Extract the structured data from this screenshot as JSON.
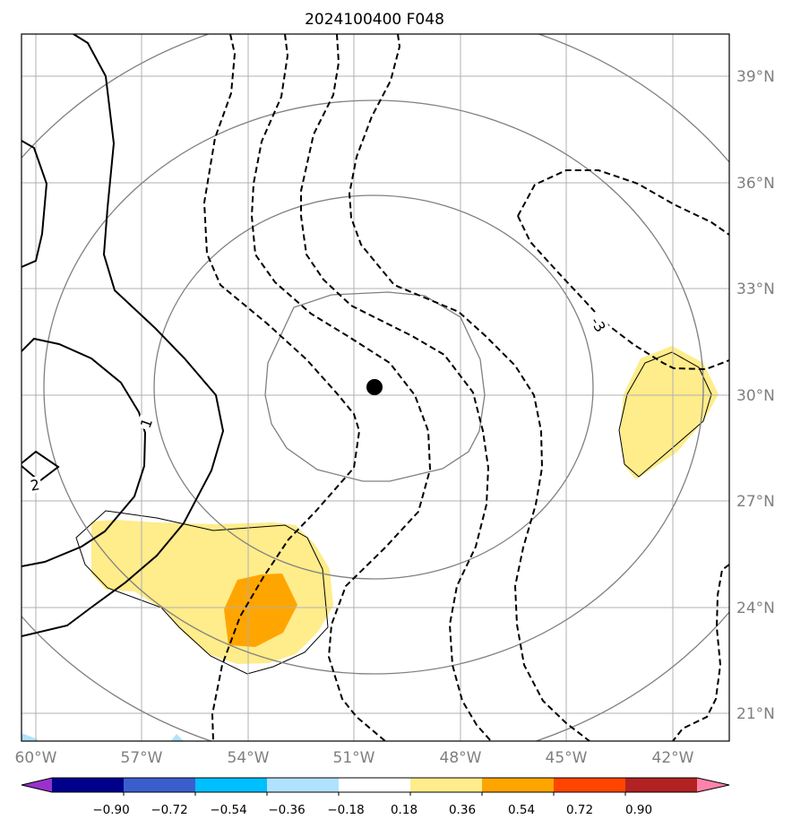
{
  "title": "2024100400 F048",
  "map": {
    "lon_range": [
      -61.2,
      -41.2
    ],
    "lat_range": [
      20,
      40
    ],
    "gridlines": true,
    "lon_ticks": [
      {
        "value": -60,
        "label": "60°W"
      },
      {
        "value": -57,
        "label": "57°W"
      },
      {
        "value": -54,
        "label": "54°W"
      },
      {
        "value": -51,
        "label": "51°W"
      },
      {
        "value": -48,
        "label": "48°W"
      },
      {
        "value": -45,
        "label": "45°W"
      },
      {
        "value": -42,
        "label": "42°W"
      }
    ],
    "lat_ticks": [
      {
        "value": 39,
        "label": "39°N"
      },
      {
        "value": 36,
        "label": "36°N"
      },
      {
        "value": 33,
        "label": "33°N"
      },
      {
        "value": 30,
        "label": "30°N"
      },
      {
        "value": 27,
        "label": "27°N"
      },
      {
        "value": 24,
        "label": "24°N"
      },
      {
        "value": 21,
        "label": "21°N"
      }
    ],
    "center_marker": {
      "lon": -50.6,
      "lat": 30.2
    },
    "contour_labels": [
      {
        "text": "1",
        "lon": -57.1,
        "lat": 29.2,
        "rotate": -70
      },
      {
        "text": "2",
        "lon": -60.5,
        "lat": 27.5,
        "rotate": -10
      },
      {
        "text": "-3",
        "lon": -43.7,
        "lat": 31.9,
        "rotate": 58
      }
    ]
  },
  "colorbar": {
    "ticks": [
      "−0.90",
      "−0.72",
      "−0.54",
      "−0.36",
      "−0.18",
      "0.18",
      "0.36",
      "0.54",
      "0.72",
      "0.90"
    ],
    "colors": [
      "#9932CC",
      "#00008B",
      "#3A5FCD",
      "#00BFFF",
      "#B0E2FF",
      "#FFFFFF",
      "#FFEC8B",
      "#FFA500",
      "#FF4500",
      "#B22222",
      "#FF82AB"
    ]
  }
}
